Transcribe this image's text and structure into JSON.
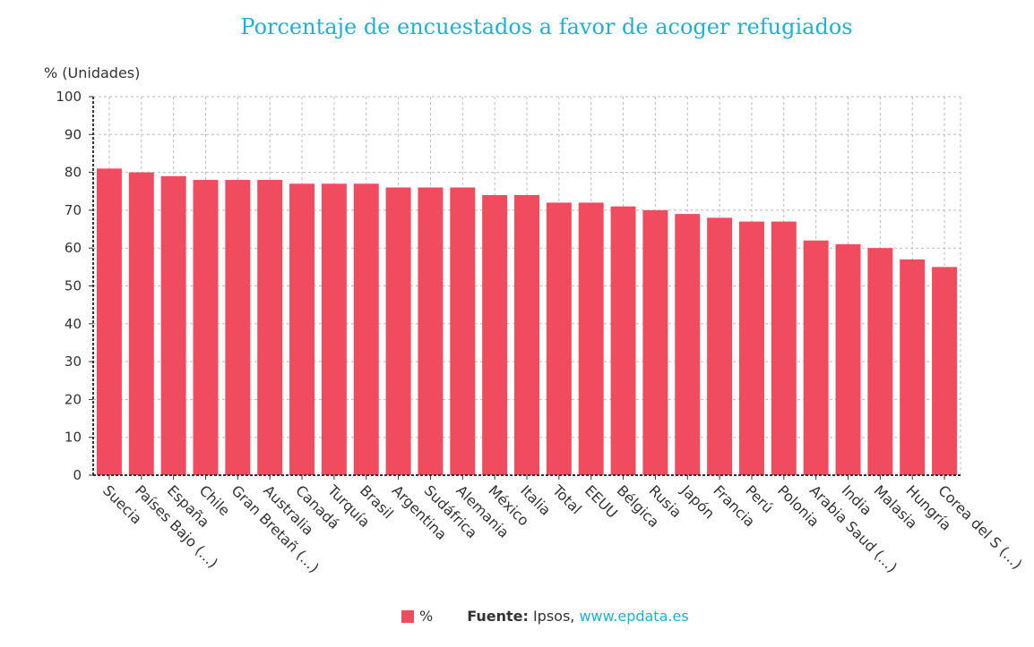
{
  "chart_data": {
    "type": "bar",
    "title": "Porcentaje de encuestados a favor de acoger refugiados",
    "ylabel": "% (Unidades)",
    "xlabel": "",
    "ylim": [
      0,
      100
    ],
    "yticks": [
      0,
      10,
      20,
      30,
      40,
      50,
      60,
      70,
      80,
      90,
      100
    ],
    "grid": true,
    "legend_position": "bottom",
    "color": "#f04b5e",
    "categories": [
      "Suecia",
      "Países Bajo (...)",
      "España",
      "Chile",
      "Gran Bretañ (...)",
      "Australia",
      "Canadá",
      "Turquía",
      "Brasil",
      "Argentina",
      "Sudáfrica",
      "Alemania",
      "México",
      "Italia",
      "Total",
      "EEUU",
      "Bélgica",
      "Rusia",
      "Japón",
      "Francia",
      "Perú",
      "Polonia",
      "Arabia Saud (...)",
      "India",
      "Malasia",
      "Hungría",
      "Corea del S (...)"
    ],
    "series": [
      {
        "name": "%",
        "values": [
          81,
          80,
          79,
          78,
          78,
          78,
          77,
          77,
          77,
          76,
          76,
          76,
          74,
          74,
          72,
          72,
          71,
          70,
          69,
          68,
          67,
          67,
          62,
          61,
          60,
          57,
          55
        ]
      }
    ]
  },
  "footer": {
    "legend_label": "%",
    "source_label": "Fuente:",
    "source_text": " Ipsos, ",
    "source_link": "www.epdata.es"
  }
}
